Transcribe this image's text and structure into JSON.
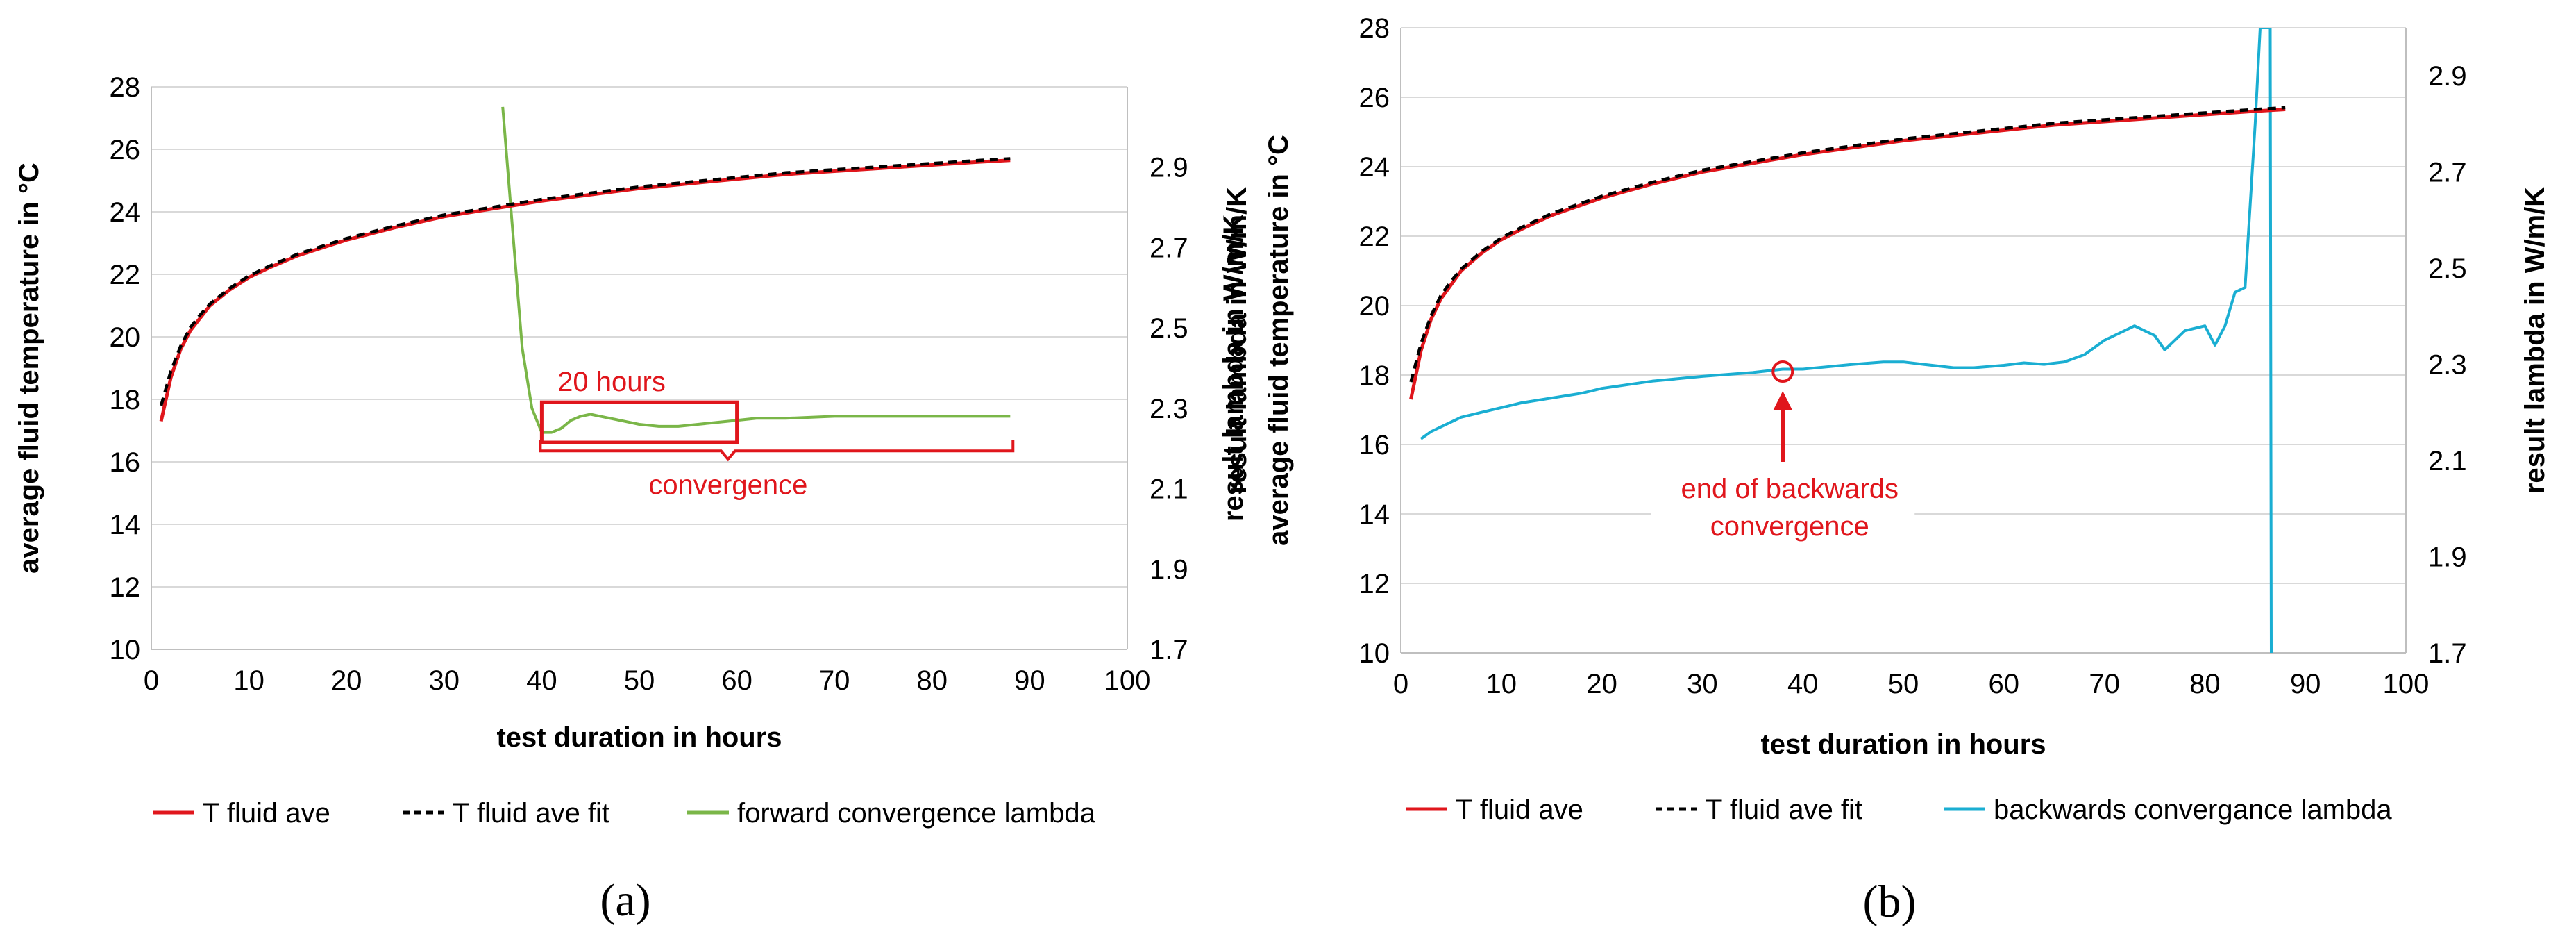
{
  "colors": {
    "red": "#e0161c",
    "fit": "#000000",
    "green": "#7ab648",
    "cyan": "#1aaed2",
    "grid": "#d9d9d9"
  },
  "chart_data": [
    {
      "type": "line",
      "panel_label": "(a)",
      "xlabel": "test duration in hours",
      "ylabel": "average fluid temperature in °C",
      "y2label": "result lambda in W/m/K",
      "xlim": [
        0,
        100
      ],
      "ylim": [
        10,
        28
      ],
      "y2lim": [
        1.7,
        3.1
      ],
      "x_ticks": [
        "0",
        "10",
        "20",
        "30",
        "40",
        "50",
        "60",
        "70",
        "80",
        "90",
        "100"
      ],
      "y_ticks": [
        "10",
        "12",
        "14",
        "16",
        "18",
        "20",
        "22",
        "24",
        "26",
        "28"
      ],
      "y2_ticks": [
        "1.7",
        "1.9",
        "2.1",
        "2.3",
        "2.5",
        "2.7",
        "2.9"
      ],
      "legend": [
        "T fluid ave",
        "T fluid ave fit",
        "forward convergence lambda"
      ],
      "series": [
        {
          "name": "T fluid ave",
          "axis": "left",
          "style": "red",
          "x": [
            1,
            2,
            3,
            4,
            5,
            6,
            8,
            10,
            12,
            15,
            18,
            20,
            25,
            30,
            35,
            40,
            45,
            50,
            55,
            60,
            65,
            70,
            75,
            80,
            85,
            88
          ],
          "y": [
            17.3,
            18.7,
            19.6,
            20.2,
            20.6,
            21.0,
            21.5,
            21.9,
            22.2,
            22.6,
            22.9,
            23.1,
            23.5,
            23.85,
            24.1,
            24.35,
            24.55,
            24.75,
            24.9,
            25.05,
            25.2,
            25.3,
            25.4,
            25.5,
            25.6,
            25.65
          ]
        },
        {
          "name": "T fluid ave fit",
          "axis": "left",
          "style": "fit",
          "x": [
            1,
            2,
            3,
            4,
            5,
            6,
            8,
            10,
            12,
            15,
            18,
            20,
            25,
            30,
            35,
            40,
            45,
            50,
            55,
            60,
            65,
            70,
            75,
            80,
            85,
            88
          ],
          "y": [
            17.8,
            18.9,
            19.7,
            20.3,
            20.7,
            21.05,
            21.55,
            21.95,
            22.25,
            22.65,
            22.95,
            23.15,
            23.55,
            23.9,
            24.15,
            24.4,
            24.6,
            24.8,
            24.95,
            25.1,
            25.25,
            25.35,
            25.45,
            25.55,
            25.65,
            25.7
          ]
        },
        {
          "name": "forward convergence lambda",
          "axis": "right",
          "style": "green",
          "x": [
            36,
            37,
            38,
            39,
            40,
            41,
            42,
            43,
            44,
            45,
            46,
            47,
            48,
            50,
            52,
            54,
            56,
            58,
            60,
            62,
            65,
            70,
            75,
            80,
            85,
            88
          ],
          "y": [
            3.05,
            2.75,
            2.45,
            2.3,
            2.24,
            2.24,
            2.25,
            2.27,
            2.28,
            2.285,
            2.28,
            2.275,
            2.27,
            2.26,
            2.255,
            2.255,
            2.26,
            2.265,
            2.27,
            2.275,
            2.275,
            2.28,
            2.28,
            2.28,
            2.28,
            2.28
          ]
        }
      ],
      "annotations": {
        "box_label": "20 hours",
        "box_x": [
          40,
          60
        ],
        "box_y2": [
          2.215,
          2.315
        ],
        "brace_label": "convergence",
        "brace_x": [
          40,
          88
        ]
      }
    },
    {
      "type": "line",
      "panel_label": "(b)",
      "xlabel": "test duration in hours",
      "ylabel": "average fluid temperature in °C",
      "ylabel_extra": "result lambda in W/m/K",
      "y2label": "result lambda in W/m/K",
      "xlim": [
        0,
        100
      ],
      "ylim": [
        10,
        28
      ],
      "y2lim": [
        1.7,
        3.0
      ],
      "x_ticks": [
        "0",
        "10",
        "20",
        "30",
        "40",
        "50",
        "60",
        "70",
        "80",
        "90",
        "100"
      ],
      "y_ticks": [
        "10",
        "12",
        "14",
        "16",
        "18",
        "20",
        "22",
        "24",
        "26",
        "28"
      ],
      "y2_ticks": [
        "1.7",
        "1.9",
        "2.1",
        "2.3",
        "2.5",
        "2.7",
        "2.9"
      ],
      "legend": [
        "T fluid ave",
        "T fluid ave fit",
        "backwards convergance lambda"
      ],
      "series": [
        {
          "name": "T fluid ave",
          "axis": "left",
          "style": "red",
          "x": [
            1,
            2,
            3,
            4,
            5,
            6,
            8,
            10,
            12,
            15,
            18,
            20,
            25,
            30,
            35,
            40,
            45,
            50,
            55,
            60,
            65,
            70,
            75,
            80,
            85,
            88
          ],
          "y": [
            17.3,
            18.7,
            19.6,
            20.2,
            20.6,
            21.0,
            21.5,
            21.9,
            22.2,
            22.6,
            22.9,
            23.1,
            23.5,
            23.85,
            24.1,
            24.35,
            24.55,
            24.75,
            24.9,
            25.05,
            25.2,
            25.3,
            25.4,
            25.5,
            25.6,
            25.65
          ]
        },
        {
          "name": "T fluid ave fit",
          "axis": "left",
          "style": "fit",
          "x": [
            1,
            2,
            3,
            4,
            5,
            6,
            8,
            10,
            12,
            15,
            18,
            20,
            25,
            30,
            35,
            40,
            45,
            50,
            55,
            60,
            65,
            70,
            75,
            80,
            85,
            88
          ],
          "y": [
            17.8,
            18.9,
            19.7,
            20.3,
            20.7,
            21.05,
            21.55,
            21.95,
            22.25,
            22.65,
            22.95,
            23.15,
            23.55,
            23.9,
            24.15,
            24.4,
            24.6,
            24.8,
            24.95,
            25.1,
            25.25,
            25.35,
            25.45,
            25.55,
            25.65,
            25.7
          ]
        },
        {
          "name": "backwards convergance lambda",
          "axis": "right",
          "style": "cyan",
          "x": [
            2,
            3,
            4,
            5,
            6,
            8,
            10,
            12,
            15,
            18,
            20,
            25,
            30,
            35,
            38,
            40,
            45,
            48,
            50,
            52,
            55,
            57,
            60,
            62,
            64,
            66,
            68,
            70,
            72,
            73,
            74,
            75,
            76,
            77,
            78,
            80,
            81,
            82,
            83,
            84,
            85,
            85.5,
            86,
            86.5,
            86.6
          ],
          "y": [
            2.145,
            2.16,
            2.17,
            2.18,
            2.19,
            2.2,
            2.21,
            2.22,
            2.23,
            2.24,
            2.25,
            2.265,
            2.275,
            2.283,
            2.29,
            2.29,
            2.3,
            2.305,
            2.305,
            2.3,
            2.293,
            2.293,
            2.298,
            2.303,
            2.3,
            2.305,
            2.32,
            2.35,
            2.37,
            2.38,
            2.37,
            2.36,
            2.33,
            2.35,
            2.37,
            2.38,
            2.34,
            2.38,
            2.45,
            2.46,
            2.8,
            3.0,
            3.0,
            3.0,
            1.7
          ]
        }
      ],
      "annotations": {
        "circle_x": 38,
        "circle_y": 18.1,
        "arrow_label_line1": "end of backwards",
        "arrow_label_line2": "convergence"
      }
    }
  ]
}
